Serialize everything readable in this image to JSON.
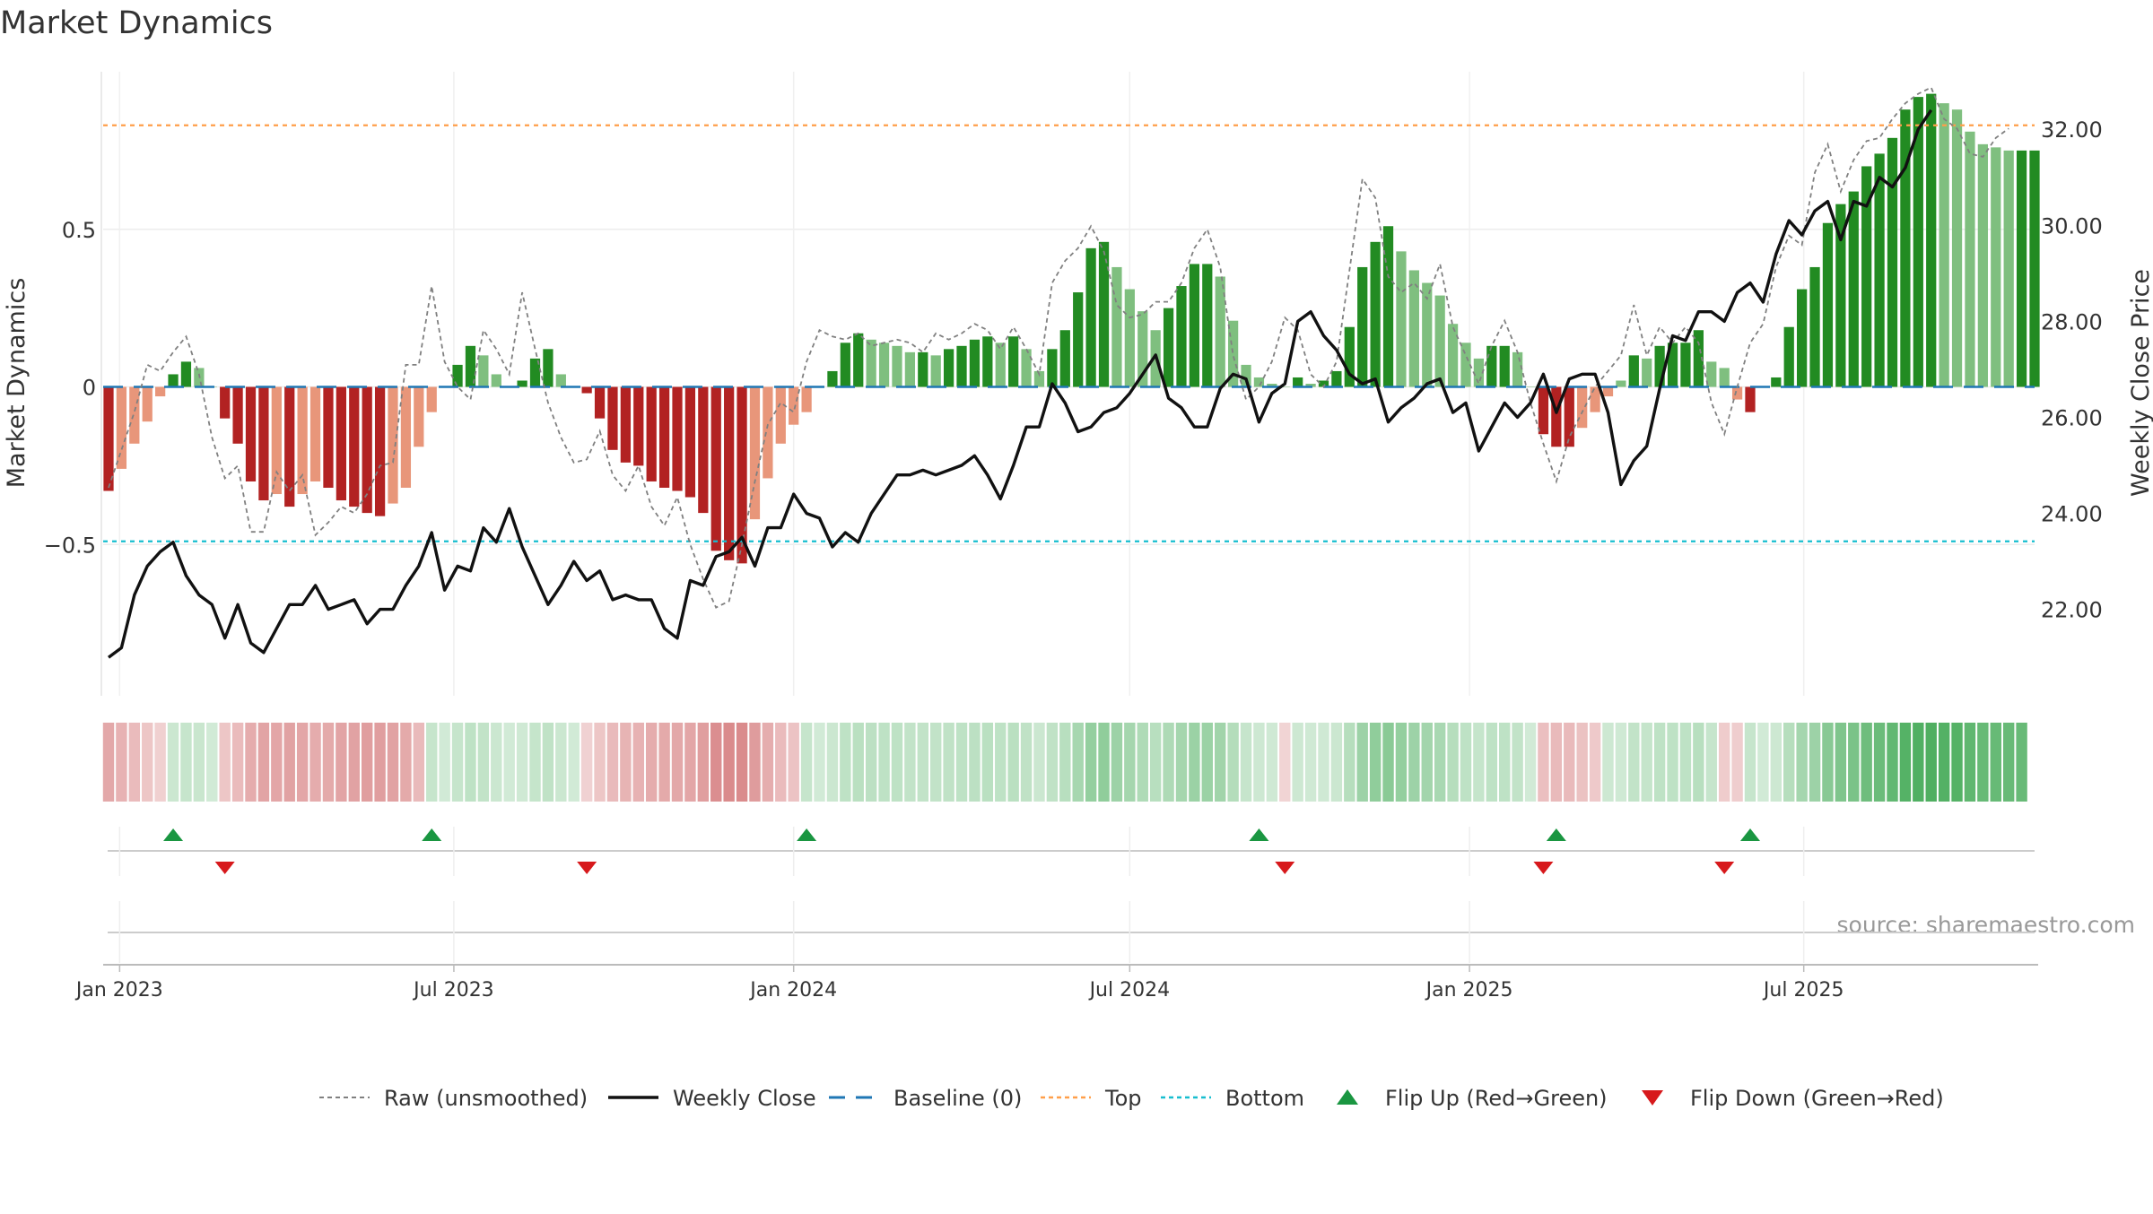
{
  "chart_data": {
    "type": "bar",
    "title": "Market Dynamics",
    "ylabel_left": "Market Dynamics",
    "ylabel_right": "Weekly Close Price",
    "ylim_left": [
      -0.98,
      1.0
    ],
    "ylim_right": [
      20.2,
      33.2
    ],
    "left_ticks": [
      {
        "value": 0.5,
        "label": "0.5"
      },
      {
        "value": 0,
        "label": "0"
      },
      {
        "value": -0.5,
        "label": "−0.5"
      }
    ],
    "right_ticks": [
      {
        "value": 22,
        "label": "22.00"
      },
      {
        "value": 24,
        "label": "24.00"
      },
      {
        "value": 26,
        "label": "26.00"
      },
      {
        "value": 28,
        "label": "28.00"
      },
      {
        "value": 30,
        "label": "30.00"
      },
      {
        "value": 32,
        "label": "32.00"
      }
    ],
    "x_start": "2022-12-26",
    "x_ticks": [
      {
        "date": "2023-01-01",
        "label": "Jan 2023"
      },
      {
        "date": "2023-07-01",
        "label": "Jul 2023"
      },
      {
        "date": "2024-01-01",
        "label": "Jan 2024"
      },
      {
        "date": "2024-07-01",
        "label": "Jul 2024"
      },
      {
        "date": "2025-01-01",
        "label": "Jan 2025"
      },
      {
        "date": "2025-07-01",
        "label": "Jul 2025"
      }
    ],
    "top_level": 0.83,
    "bottom_level": -0.49,
    "baseline": 0,
    "dynamics": [
      -0.33,
      -0.26,
      -0.18,
      -0.11,
      -0.03,
      0.04,
      0.08,
      0.06,
      0.0,
      -0.1,
      -0.18,
      -0.3,
      -0.36,
      -0.34,
      -0.38,
      -0.34,
      -0.3,
      -0.32,
      -0.36,
      -0.38,
      -0.4,
      -0.41,
      -0.37,
      -0.32,
      -0.19,
      -0.08,
      0.0,
      0.07,
      0.13,
      0.1,
      0.04,
      0.0,
      0.02,
      0.09,
      0.12,
      0.04,
      0.0,
      -0.02,
      -0.1,
      -0.2,
      -0.24,
      -0.25,
      -0.3,
      -0.32,
      -0.33,
      -0.35,
      -0.4,
      -0.52,
      -0.55,
      -0.56,
      -0.42,
      -0.29,
      -0.18,
      -0.12,
      -0.08,
      0.0,
      0.05,
      0.14,
      0.17,
      0.15,
      0.14,
      0.13,
      0.11,
      0.11,
      0.1,
      0.12,
      0.13,
      0.15,
      0.16,
      0.14,
      0.16,
      0.12,
      0.05,
      0.12,
      0.18,
      0.3,
      0.44,
      0.46,
      0.38,
      0.31,
      0.24,
      0.18,
      0.25,
      0.32,
      0.39,
      0.39,
      0.35,
      0.21,
      0.07,
      0.03,
      0.01,
      0.0,
      0.03,
      0.01,
      0.02,
      0.05,
      0.19,
      0.38,
      0.46,
      0.51,
      0.43,
      0.37,
      0.33,
      0.29,
      0.2,
      0.14,
      0.09,
      0.13,
      0.13,
      0.11,
      0.0,
      -0.15,
      -0.19,
      -0.19,
      -0.13,
      -0.08,
      -0.03,
      0.02,
      0.1,
      0.09,
      0.13,
      0.14,
      0.14,
      0.18,
      0.08,
      0.06,
      -0.04,
      -0.08,
      0.0,
      0.03,
      0.19,
      0.31,
      0.38,
      0.52,
      0.58,
      0.62,
      0.7,
      0.74,
      0.79,
      0.88,
      0.92,
      0.93,
      0.9,
      0.88,
      0.81,
      0.77,
      0.76,
      0.75,
      0.75,
      0.75
    ],
    "raw": [
      -0.32,
      -0.2,
      -0.08,
      0.07,
      0.05,
      0.11,
      0.16,
      0.04,
      -0.16,
      -0.29,
      -0.25,
      -0.46,
      -0.46,
      -0.27,
      -0.33,
      -0.28,
      -0.47,
      -0.43,
      -0.38,
      -0.4,
      -0.34,
      -0.25,
      -0.24,
      0.07,
      0.07,
      0.32,
      0.08,
      0.0,
      -0.04,
      0.18,
      0.12,
      0.04,
      0.3,
      0.12,
      -0.05,
      -0.16,
      -0.24,
      -0.23,
      -0.14,
      -0.28,
      -0.33,
      -0.25,
      -0.38,
      -0.44,
      -0.35,
      -0.5,
      -0.61,
      -0.7,
      -0.68,
      -0.5,
      -0.3,
      -0.12,
      -0.05,
      -0.08,
      0.08,
      0.18,
      0.16,
      0.15,
      0.17,
      0.13,
      0.14,
      0.15,
      0.14,
      0.11,
      0.17,
      0.15,
      0.17,
      0.2,
      0.18,
      0.12,
      0.19,
      0.12,
      0.04,
      0.33,
      0.4,
      0.44,
      0.51,
      0.43,
      0.26,
      0.22,
      0.23,
      0.27,
      0.27,
      0.33,
      0.44,
      0.5,
      0.38,
      0.1,
      -0.04,
      0.0,
      0.08,
      0.22,
      0.18,
      0.04,
      0.0,
      0.08,
      0.37,
      0.66,
      0.6,
      0.35,
      0.3,
      0.33,
      0.28,
      0.39,
      0.19,
      0.1,
      0.01,
      0.13,
      0.21,
      0.11,
      -0.05,
      -0.18,
      -0.3,
      -0.16,
      -0.08,
      0.0,
      0.05,
      0.1,
      0.26,
      0.1,
      0.19,
      0.14,
      0.19,
      0.14,
      -0.05,
      -0.15,
      0.0,
      0.14,
      0.2,
      0.38,
      0.48,
      0.45,
      0.68,
      0.77,
      0.62,
      0.72,
      0.78,
      0.79,
      0.85,
      0.9,
      0.93,
      0.95,
      0.85,
      0.82,
      0.74,
      0.73,
      0.79,
      0.82
    ],
    "weekly_close": [
      21.0,
      21.2,
      22.3,
      22.9,
      23.2,
      23.4,
      22.7,
      22.3,
      22.1,
      21.4,
      22.1,
      21.3,
      21.1,
      21.6,
      22.1,
      22.1,
      22.5,
      22.0,
      22.1,
      22.2,
      21.7,
      22.0,
      22.0,
      22.5,
      22.9,
      23.6,
      22.4,
      22.9,
      22.8,
      23.7,
      23.4,
      24.1,
      23.3,
      22.7,
      22.1,
      22.5,
      23.0,
      22.6,
      22.8,
      22.2,
      22.3,
      22.2,
      22.2,
      21.6,
      21.4,
      22.6,
      22.5,
      23.1,
      23.2,
      23.5,
      22.9,
      23.7,
      23.7,
      24.4,
      24.0,
      23.9,
      23.3,
      23.6,
      23.4,
      24.0,
      24.4,
      24.8,
      24.8,
      24.9,
      24.8,
      24.9,
      25.0,
      25.2,
      24.8,
      24.3,
      25.0,
      25.8,
      25.8,
      26.7,
      26.3,
      25.7,
      25.8,
      26.1,
      26.2,
      26.5,
      26.9,
      27.3,
      26.4,
      26.2,
      25.8,
      25.8,
      26.6,
      26.9,
      26.8,
      25.9,
      26.5,
      26.7,
      28.0,
      28.2,
      27.7,
      27.4,
      26.9,
      26.7,
      26.8,
      25.9,
      26.2,
      26.4,
      26.7,
      26.8,
      26.1,
      26.3,
      25.3,
      25.8,
      26.3,
      26.0,
      26.3,
      26.9,
      26.1,
      26.8,
      26.9,
      26.9,
      26.1,
      24.6,
      25.1,
      25.4,
      26.6,
      27.7,
      27.6,
      28.2,
      28.2,
      28.0,
      28.6,
      28.8,
      28.4,
      29.4,
      30.1,
      29.8,
      30.3,
      30.5,
      29.7,
      30.5,
      30.4,
      31.0,
      30.8,
      31.2,
      32.0,
      32.4
    ],
    "regime": [
      -1,
      -1,
      -1,
      -1,
      -1,
      1,
      1,
      1,
      1,
      -1,
      -1,
      -1,
      -1,
      -1,
      -1,
      -1,
      -1,
      -1,
      -1,
      -1,
      -1,
      -1,
      -1,
      -1,
      -1,
      1,
      1,
      1,
      1,
      1,
      1,
      1,
      1,
      1,
      1,
      1,
      1,
      -1,
      -1,
      -1,
      -1,
      -1,
      -1,
      -1,
      -1,
      -1,
      -1,
      -1,
      -1,
      -1,
      -1,
      -1,
      -1,
      -1,
      1,
      1,
      1,
      1,
      1,
      1,
      1,
      1,
      1,
      1,
      1,
      1,
      1,
      1,
      1,
      1,
      1,
      1,
      1,
      1,
      1,
      1,
      1,
      1,
      1,
      1,
      1,
      1,
      1,
      1,
      1,
      1,
      1,
      1,
      1,
      1,
      1,
      -1,
      1,
      1,
      1,
      1,
      1,
      1,
      1,
      1,
      1,
      1,
      1,
      1,
      1,
      1,
      1,
      1,
      1,
      1,
      1,
      -1,
      -1,
      -1,
      -1,
      -1,
      1,
      1,
      1,
      1,
      1,
      1,
      1,
      1,
      1,
      -1,
      -1,
      1,
      1,
      1,
      1,
      1,
      1,
      1,
      1,
      1,
      1,
      1,
      1,
      1,
      1,
      1,
      1,
      1,
      1,
      1,
      1,
      1,
      1
    ],
    "flip_up_weeks": [
      5,
      25,
      54,
      89,
      112,
      127
    ],
    "flip_down_weeks": [
      9,
      37,
      91,
      111,
      125
    ],
    "colors": {
      "strong_red": "#b22222",
      "light_red": "#e8967a",
      "strong_green": "#228b22",
      "light_green": "#7fbf7f",
      "weekly_close": "#111111",
      "raw": "#808080",
      "baseline": "#1f77b4",
      "top": "#ff9f4a",
      "bottom": "#17becf",
      "flip_up": "#1a9641",
      "flip_down": "#d7191c"
    },
    "legend_position": "bottom-center",
    "legend": [
      {
        "key": "raw",
        "label": "Raw (unsmoothed)"
      },
      {
        "key": "weekly_close",
        "label": "Weekly Close"
      },
      {
        "key": "baseline",
        "label": "Baseline (0)"
      },
      {
        "key": "top",
        "label": "Top"
      },
      {
        "key": "bottom",
        "label": "Bottom"
      },
      {
        "key": "flip_up",
        "label": "Flip Up (Red→Green)"
      },
      {
        "key": "flip_down",
        "label": "Flip Down (Green→Red)"
      }
    ],
    "source_note": "source: sharemaestro.com"
  }
}
